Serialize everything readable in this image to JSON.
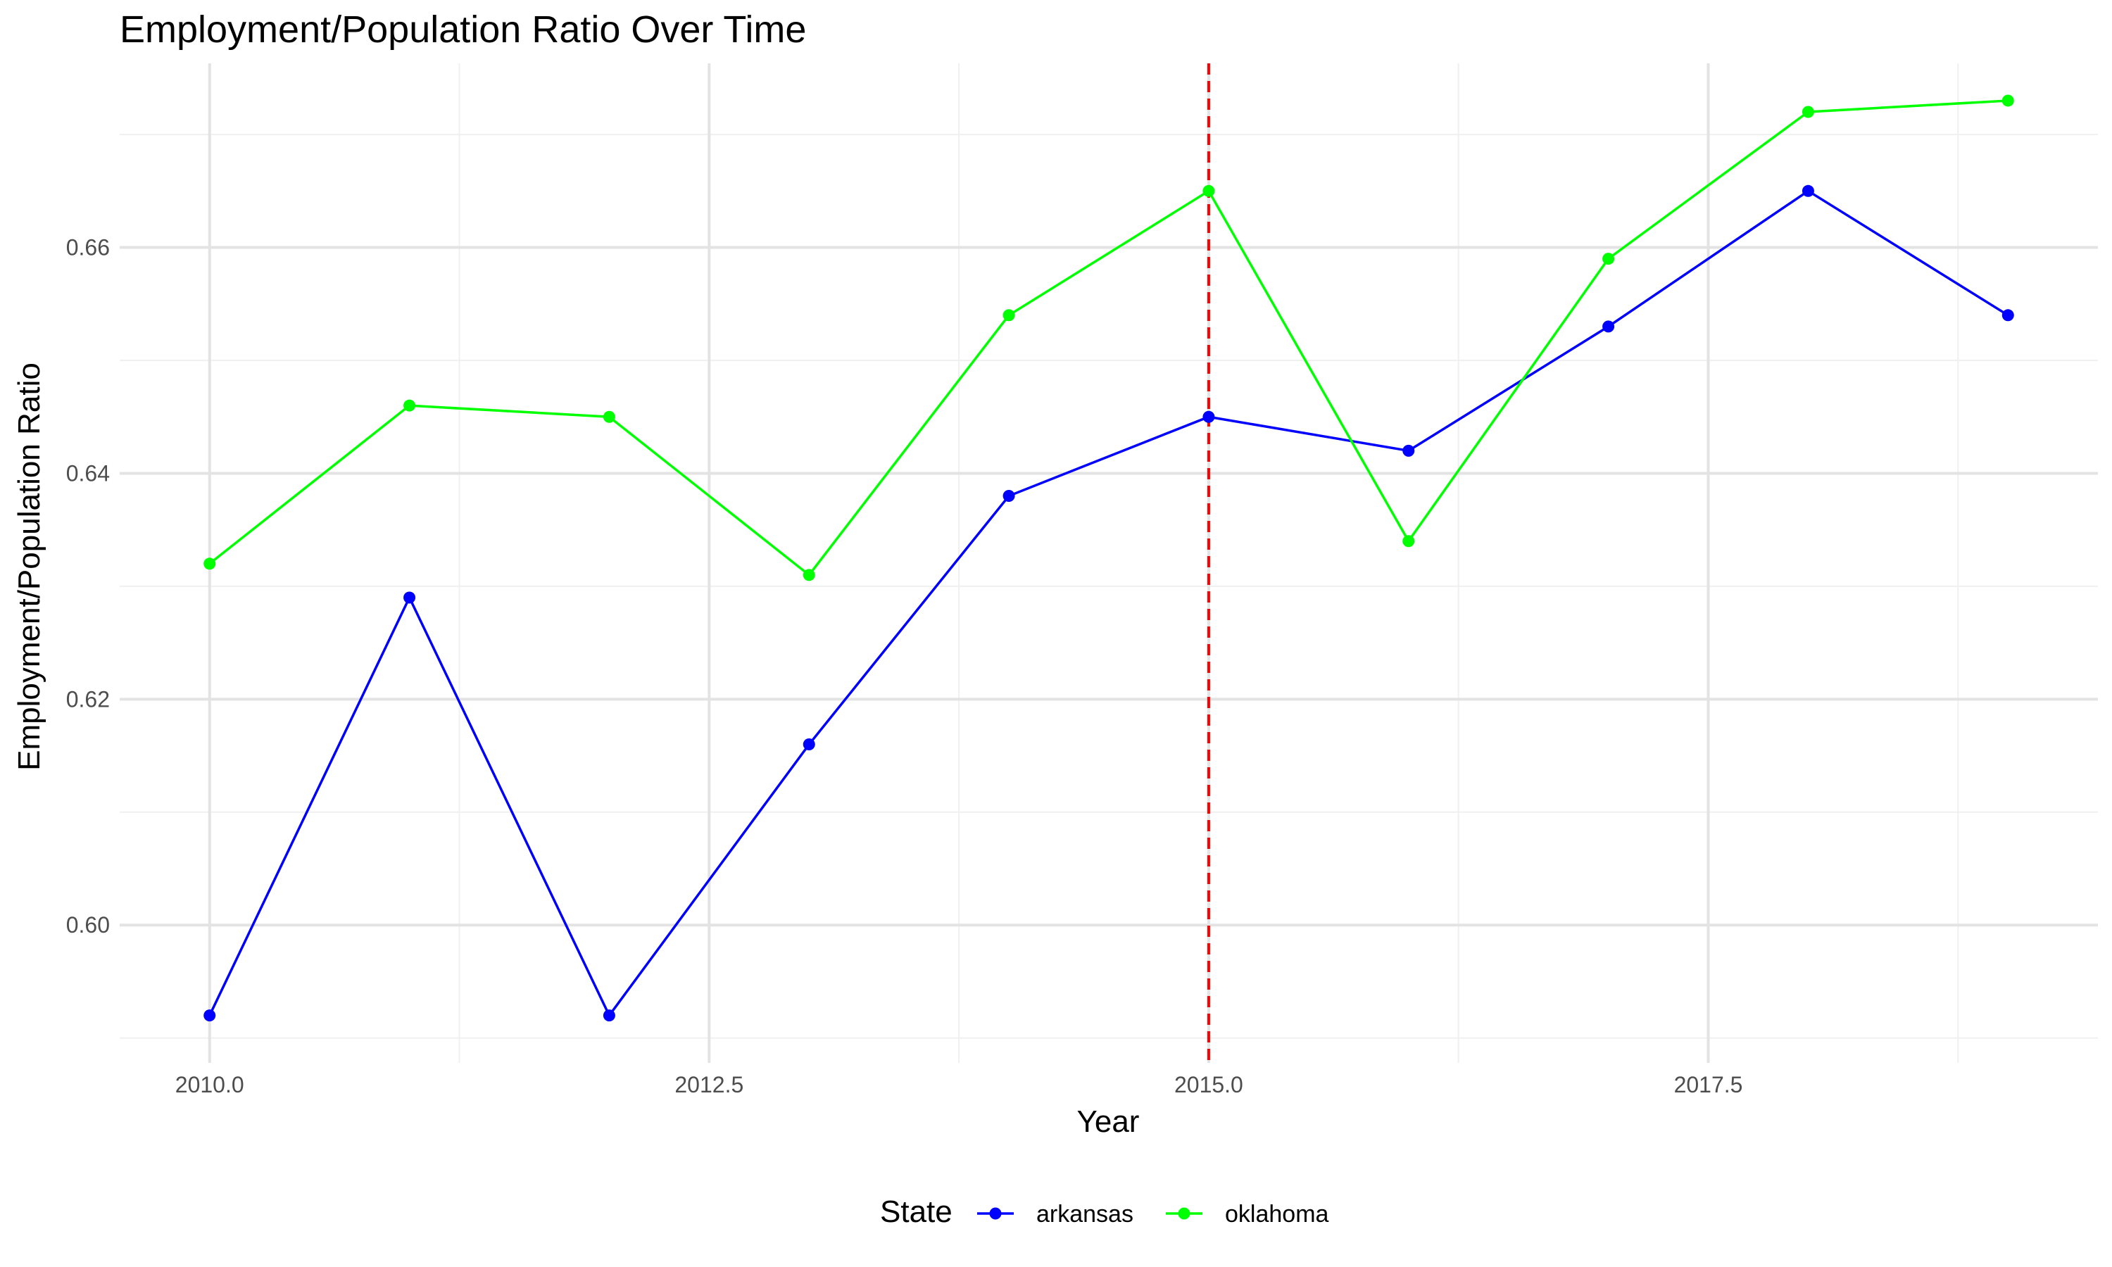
{
  "chart_data": {
    "type": "line",
    "title": "Employment/Population Ratio Over Time",
    "xlabel": "Year",
    "ylabel": "Employment/Population Ratio",
    "x": [
      2010,
      2011,
      2012,
      2013,
      2014,
      2015,
      2016,
      2017,
      2018,
      2019
    ],
    "xlim": [
      2009.55,
      2019.45
    ],
    "ylim": [
      0.5878,
      0.6763
    ],
    "x_ticks": [
      2010.0,
      2012.5,
      2015.0,
      2017.5
    ],
    "x_tick_labels": [
      "2010.0",
      "2012.5",
      "2015.0",
      "2017.5"
    ],
    "y_ticks": [
      0.6,
      0.62,
      0.64,
      0.66
    ],
    "y_tick_labels": [
      "0.60",
      "0.62",
      "0.64",
      "0.66"
    ],
    "grid": true,
    "vline": {
      "x": 2015,
      "color": "#ff0000",
      "style": "dashed"
    },
    "series": [
      {
        "name": "arkansas",
        "color": "#0000ff",
        "values": [
          0.592,
          0.629,
          0.592,
          0.616,
          0.638,
          0.645,
          0.642,
          0.653,
          0.665,
          0.654
        ]
      },
      {
        "name": "oklahoma",
        "color": "#00ff00",
        "values": [
          0.632,
          0.646,
          0.645,
          0.631,
          0.654,
          0.665,
          0.634,
          0.659,
          0.672,
          0.673
        ]
      }
    ],
    "legend": {
      "title": "State",
      "position": "bottom"
    }
  }
}
